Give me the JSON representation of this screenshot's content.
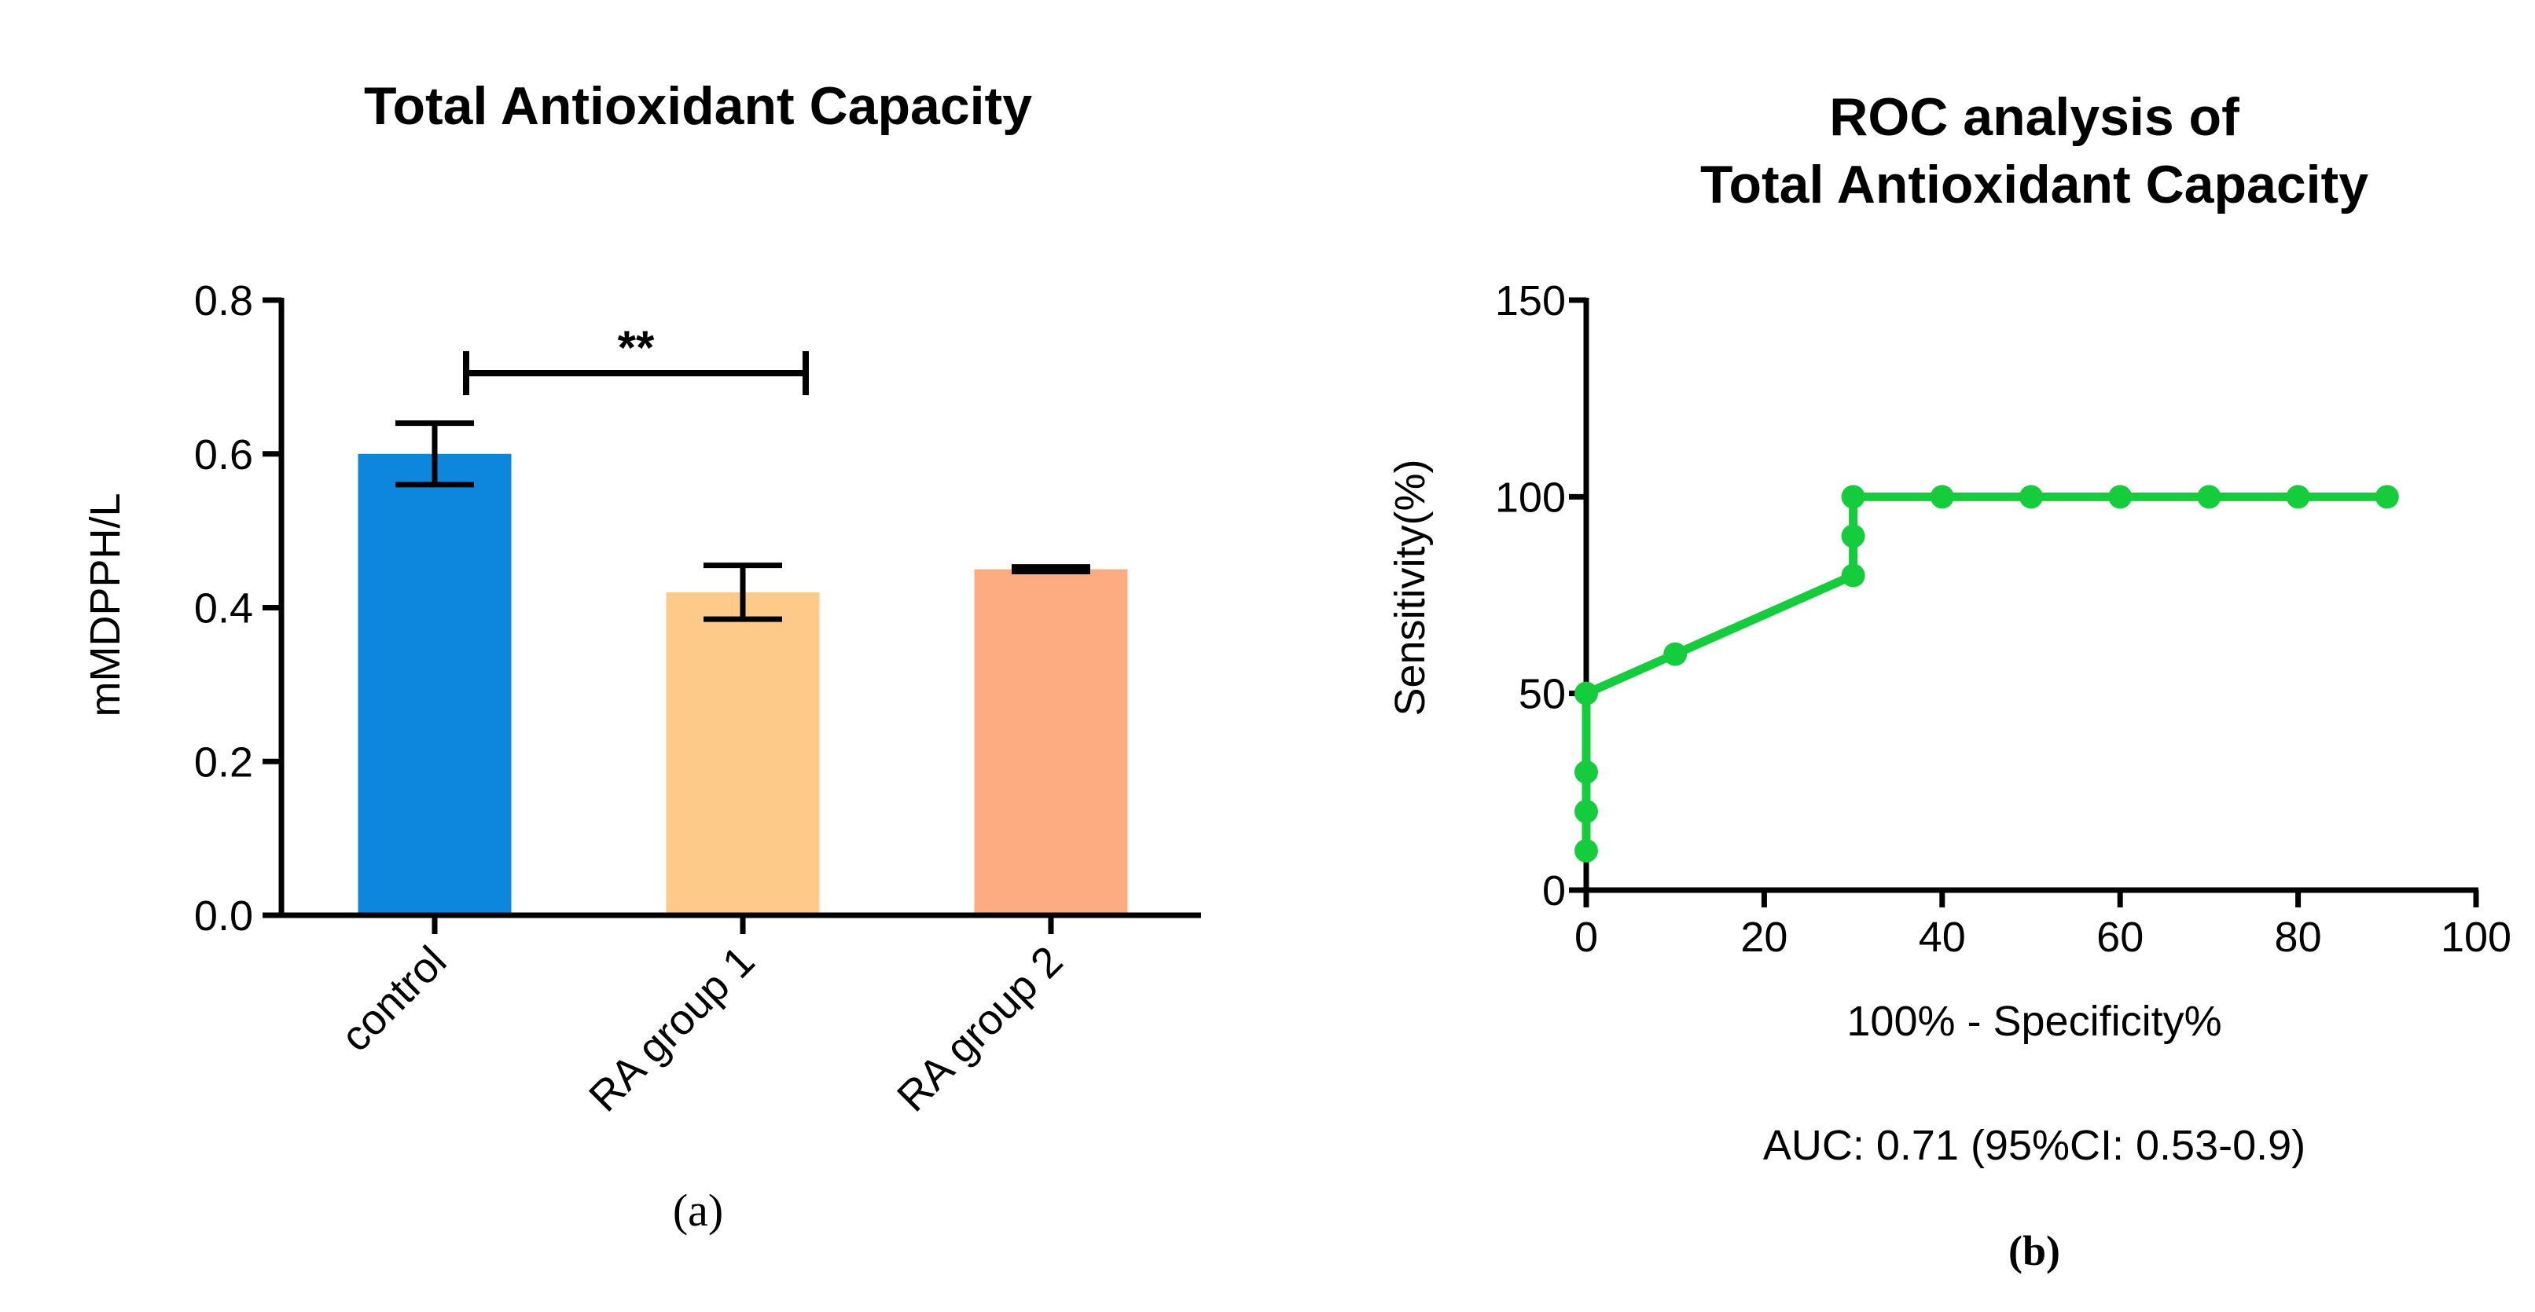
{
  "chart_data": [
    {
      "type": "bar",
      "title": "Total Antioxidant Capacity",
      "ylabel": "mMDPPH/L",
      "xlabel": "",
      "categories": [
        "control",
        "RA group 1",
        "RA group 2"
      ],
      "values": [
        0.6,
        0.42,
        0.45
      ],
      "error": [
        0.04,
        0.035,
        0.003
      ],
      "bar_colors": [
        "#0C87DD",
        "#FDCA8A",
        "#FDAB80"
      ],
      "ylim": [
        0.0,
        0.8
      ],
      "yticks": [
        0.0,
        0.2,
        0.4,
        0.6,
        0.8
      ],
      "ytick_labels": [
        "0.0",
        "0.2",
        "0.4",
        "0.6",
        "0.8"
      ],
      "significance": {
        "from": "control",
        "to": "RA group 1",
        "label": "**",
        "y": 0.705
      },
      "panel_label": "(a)"
    },
    {
      "type": "line",
      "title_lines": [
        "ROC analysis of",
        "Total Antioxidant Capacity"
      ],
      "xlabel": "100% - Specificity%",
      "ylabel": "Sensitivity(%)",
      "xlim": [
        0,
        100
      ],
      "ylim": [
        0,
        150
      ],
      "xticks": [
        0,
        20,
        40,
        60,
        80,
        100
      ],
      "yticks": [
        0,
        50,
        100,
        150
      ],
      "series": [
        {
          "name": "ROC",
          "color": "#14CC3C",
          "points": [
            {
              "x": 0,
              "y": 10
            },
            {
              "x": 0,
              "y": 20
            },
            {
              "x": 0,
              "y": 30
            },
            {
              "x": 0,
              "y": 50
            },
            {
              "x": 10,
              "y": 60
            },
            {
              "x": 30,
              "y": 80
            },
            {
              "x": 30,
              "y": 90
            },
            {
              "x": 30,
              "y": 100
            },
            {
              "x": 40,
              "y": 100
            },
            {
              "x": 50,
              "y": 100
            },
            {
              "x": 60,
              "y": 100
            },
            {
              "x": 70,
              "y": 100
            },
            {
              "x": 80,
              "y": 100
            },
            {
              "x": 90,
              "y": 100
            }
          ]
        }
      ],
      "annotation": "AUC: 0.71 (95%CI: 0.53-0.9)",
      "panel_label": "(b)"
    }
  ]
}
